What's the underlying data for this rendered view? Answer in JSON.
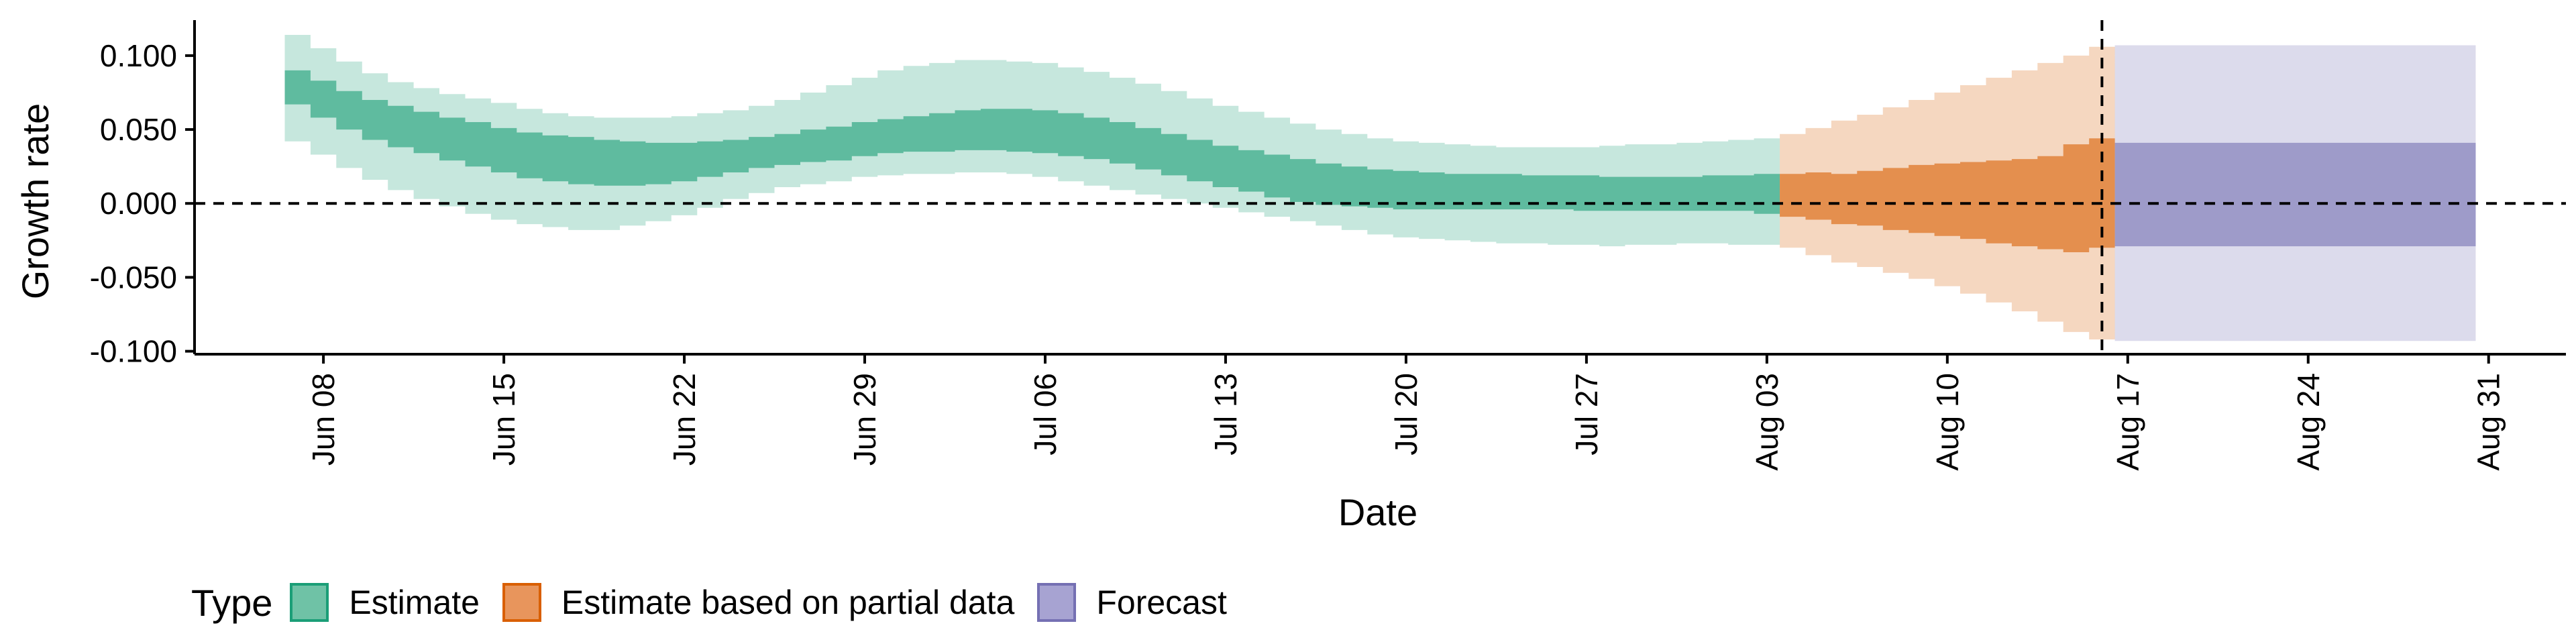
{
  "chart_data": {
    "type": "area",
    "xlabel": "Date",
    "ylabel": "Growth rate",
    "ylim": [
      -0.102,
      0.124
    ],
    "y_ticks": [
      0.1,
      0.05,
      0.0,
      -0.05,
      -0.1
    ],
    "y_tick_labels": [
      "0.100",
      "0.050",
      "0.000",
      "-0.050",
      "-0.100"
    ],
    "x_ticks": [
      "2020-06-08",
      "2020-06-15",
      "2020-06-22",
      "2020-06-29",
      "2020-07-06",
      "2020-07-13",
      "2020-07-20",
      "2020-07-27",
      "2020-08-03",
      "2020-08-10",
      "2020-08-17",
      "2020-08-24",
      "2020-08-31"
    ],
    "x_tick_labels": [
      "Jun 08",
      "Jun 15",
      "Jun 22",
      "Jun 29",
      "Jul 06",
      "Jul 13",
      "Jul 20",
      "Jul 27",
      "Aug 03",
      "Aug 10",
      "Aug 17",
      "Aug 24",
      "Aug 31"
    ],
    "xlim": [
      "2020-06-03",
      "2020-09-03"
    ],
    "reference_lines": {
      "horizontal_y": 0.0,
      "vertical_date": "2020-08-16"
    },
    "grid": false,
    "legend": {
      "title": "Type",
      "placement": "bottom-left"
    },
    "series": [
      {
        "name": "Estimate",
        "color": "#1b9e77",
        "dates": [
          "2020-06-07",
          "2020-06-08",
          "2020-06-09",
          "2020-06-10",
          "2020-06-11",
          "2020-06-12",
          "2020-06-13",
          "2020-06-14",
          "2020-06-15",
          "2020-06-16",
          "2020-06-17",
          "2020-06-18",
          "2020-06-19",
          "2020-06-20",
          "2020-06-21",
          "2020-06-22",
          "2020-06-23",
          "2020-06-24",
          "2020-06-25",
          "2020-06-26",
          "2020-06-27",
          "2020-06-28",
          "2020-06-29",
          "2020-06-30",
          "2020-07-01",
          "2020-07-02",
          "2020-07-03",
          "2020-07-04",
          "2020-07-05",
          "2020-07-06",
          "2020-07-07",
          "2020-07-08",
          "2020-07-09",
          "2020-07-10",
          "2020-07-11",
          "2020-07-12",
          "2020-07-13",
          "2020-07-14",
          "2020-07-15",
          "2020-07-16",
          "2020-07-17",
          "2020-07-18",
          "2020-07-19",
          "2020-07-20",
          "2020-07-21",
          "2020-07-22",
          "2020-07-23",
          "2020-07-24",
          "2020-07-25",
          "2020-07-26",
          "2020-07-27",
          "2020-07-28",
          "2020-07-29",
          "2020-07-30",
          "2020-07-31",
          "2020-08-01",
          "2020-08-02",
          "2020-08-03"
        ],
        "lower_90": [
          0.042,
          0.033,
          0.024,
          0.016,
          0.009,
          0.003,
          -0.002,
          -0.007,
          -0.011,
          -0.014,
          -0.016,
          -0.018,
          -0.018,
          -0.015,
          -0.012,
          -0.008,
          -0.003,
          0.003,
          0.007,
          0.011,
          0.013,
          0.015,
          0.018,
          0.019,
          0.02,
          0.02,
          0.021,
          0.021,
          0.02,
          0.018,
          0.015,
          0.012,
          0.009,
          0.006,
          0.003,
          0.0,
          -0.003,
          -0.006,
          -0.009,
          -0.012,
          -0.015,
          -0.018,
          -0.021,
          -0.023,
          -0.024,
          -0.025,
          -0.026,
          -0.027,
          -0.027,
          -0.028,
          -0.028,
          -0.029,
          -0.028,
          -0.028,
          -0.027,
          -0.027,
          -0.028,
          -0.028
        ],
        "upper_90": [
          0.114,
          0.105,
          0.096,
          0.088,
          0.082,
          0.078,
          0.074,
          0.071,
          0.068,
          0.064,
          0.061,
          0.059,
          0.058,
          0.058,
          0.058,
          0.059,
          0.061,
          0.063,
          0.066,
          0.07,
          0.075,
          0.08,
          0.085,
          0.09,
          0.093,
          0.095,
          0.097,
          0.097,
          0.096,
          0.095,
          0.092,
          0.089,
          0.085,
          0.081,
          0.076,
          0.071,
          0.066,
          0.062,
          0.058,
          0.054,
          0.05,
          0.047,
          0.044,
          0.042,
          0.041,
          0.04,
          0.039,
          0.038,
          0.038,
          0.038,
          0.038,
          0.039,
          0.04,
          0.04,
          0.041,
          0.042,
          0.043,
          0.044
        ],
        "lower_50": [
          0.067,
          0.058,
          0.05,
          0.043,
          0.038,
          0.034,
          0.029,
          0.025,
          0.021,
          0.017,
          0.015,
          0.013,
          0.012,
          0.012,
          0.013,
          0.015,
          0.018,
          0.021,
          0.024,
          0.026,
          0.028,
          0.029,
          0.032,
          0.034,
          0.035,
          0.035,
          0.036,
          0.036,
          0.035,
          0.034,
          0.032,
          0.03,
          0.027,
          0.023,
          0.019,
          0.015,
          0.011,
          0.008,
          0.004,
          0.001,
          -0.001,
          -0.002,
          -0.003,
          -0.004,
          -0.004,
          -0.004,
          -0.004,
          -0.004,
          -0.004,
          -0.004,
          -0.005,
          -0.005,
          -0.005,
          -0.005,
          -0.005,
          -0.005,
          -0.005,
          -0.007
        ],
        "upper_50": [
          0.09,
          0.083,
          0.076,
          0.07,
          0.066,
          0.062,
          0.058,
          0.055,
          0.051,
          0.048,
          0.046,
          0.045,
          0.043,
          0.042,
          0.041,
          0.041,
          0.042,
          0.043,
          0.045,
          0.047,
          0.05,
          0.052,
          0.055,
          0.057,
          0.059,
          0.061,
          0.063,
          0.064,
          0.064,
          0.063,
          0.061,
          0.058,
          0.055,
          0.051,
          0.047,
          0.043,
          0.039,
          0.036,
          0.033,
          0.03,
          0.027,
          0.025,
          0.023,
          0.022,
          0.021,
          0.02,
          0.02,
          0.02,
          0.019,
          0.019,
          0.019,
          0.018,
          0.018,
          0.018,
          0.018,
          0.019,
          0.019,
          0.02
        ]
      },
      {
        "name": "Estimate based on partial data",
        "color": "#d95f02",
        "dates": [
          "2020-08-04",
          "2020-08-05",
          "2020-08-06",
          "2020-08-07",
          "2020-08-08",
          "2020-08-09",
          "2020-08-10",
          "2020-08-11",
          "2020-08-12",
          "2020-08-13",
          "2020-08-14",
          "2020-08-15",
          "2020-08-16"
        ],
        "lower_90": [
          -0.03,
          -0.035,
          -0.04,
          -0.043,
          -0.047,
          -0.051,
          -0.056,
          -0.061,
          -0.067,
          -0.073,
          -0.08,
          -0.087,
          -0.092
        ],
        "upper_90": [
          0.047,
          0.051,
          0.056,
          0.06,
          0.065,
          0.07,
          0.075,
          0.08,
          0.085,
          0.09,
          0.095,
          0.1,
          0.106
        ],
        "lower_50": [
          -0.009,
          -0.011,
          -0.014,
          -0.015,
          -0.018,
          -0.02,
          -0.022,
          -0.024,
          -0.027,
          -0.029,
          -0.031,
          -0.033,
          -0.03
        ],
        "upper_50": [
          0.02,
          0.021,
          0.02,
          0.022,
          0.024,
          0.026,
          0.027,
          0.028,
          0.029,
          0.03,
          0.032,
          0.04,
          0.044
        ]
      },
      {
        "name": "Forecast",
        "color": "#7570b3",
        "dates": [
          "2020-08-17",
          "2020-08-30"
        ],
        "lower_90": [
          -0.093,
          -0.093
        ],
        "upper_90": [
          0.107,
          0.107
        ],
        "lower_50": [
          -0.029,
          -0.029
        ],
        "upper_50": [
          0.041,
          0.041
        ]
      }
    ]
  },
  "legend": {
    "title": "Type",
    "items": [
      {
        "label": "Estimate",
        "fill": "#6fc2a6",
        "border": "#1b9e77"
      },
      {
        "label": "Estimate based on partial data",
        "fill": "#e8955c",
        "border": "#d95f02"
      },
      {
        "label": "Forecast",
        "fill": "#a7a3d2",
        "border": "#7570b3"
      }
    ]
  }
}
